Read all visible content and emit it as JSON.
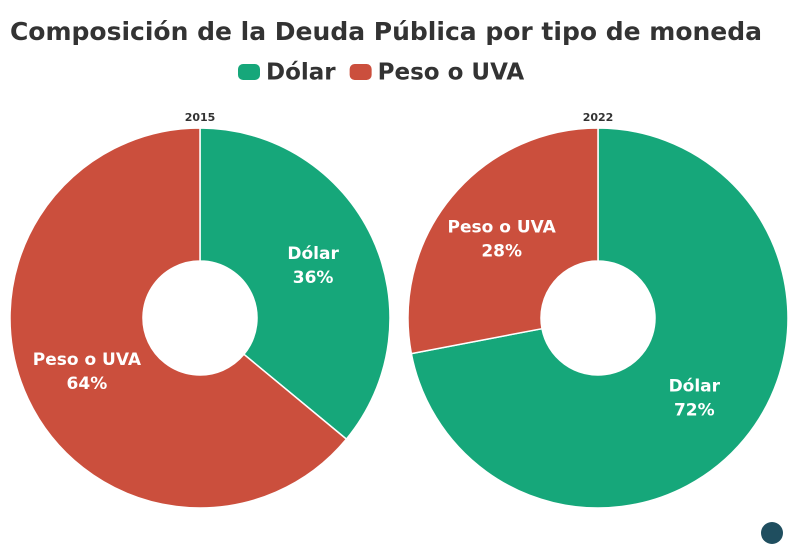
{
  "header": {
    "title": "Composición de la Deuda Pública por tipo de moneda"
  },
  "chart_data": [
    {
      "type": "pie",
      "title": "2015",
      "categories": [
        "Dólar",
        "Peso o UVA"
      ],
      "values": [
        36,
        64
      ],
      "value_labels": [
        "36%",
        "64%"
      ],
      "colors": [
        "#16a77a",
        "#cb4f3d"
      ]
    },
    {
      "type": "pie",
      "title": "2022",
      "categories": [
        "Dólar",
        "Peso o UVA"
      ],
      "values": [
        72,
        28
      ],
      "value_labels": [
        "72%",
        "28%"
      ],
      "colors": [
        "#16a77a",
        "#cb4f3d"
      ]
    }
  ]
}
